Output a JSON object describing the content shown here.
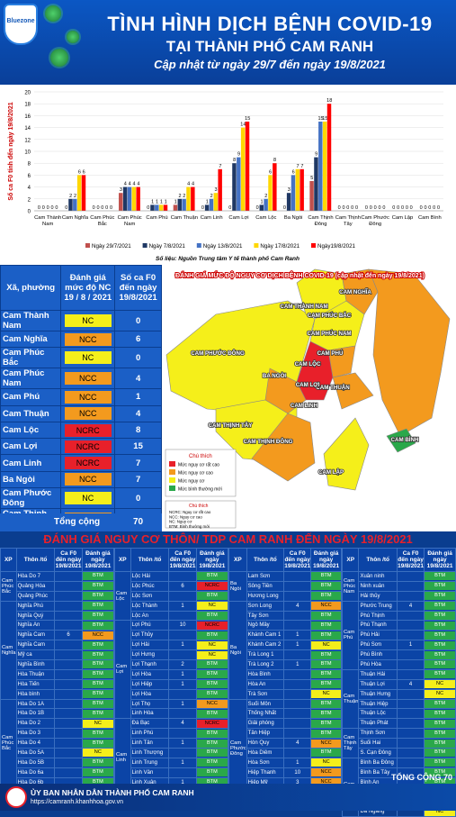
{
  "header": {
    "logo_text": "Bluezone",
    "title": "TÌNH HÌNH DỊCH BỆNH COVID-19",
    "subtitle": "TẠI THÀNH PHỐ CAM RANH",
    "update": "Cập nhật từ ngày 29/7 đến ngày 19/8/2021"
  },
  "chart_data": {
    "type": "bar",
    "ylabel": "Số ca F0 tính đến ngày 19/8/2021",
    "ylim": [
      0,
      20
    ],
    "categories": [
      "Cam Thành Nam",
      "Cam Nghĩa",
      "Cam Phúc Bắc",
      "Cam Phúc Nam",
      "Cam Phú",
      "Cam Thuận",
      "Cam Linh",
      "Cam Lợi",
      "Cam Lộc",
      "Ba Ngòi",
      "Cam Thịnh Đông",
      "Cam Thịnh Tây",
      "Cam Phước Đông",
      "Cam Lập",
      "Cam Bình"
    ],
    "series": [
      {
        "name": "Ngày 29/7/2021",
        "color": "#c0504d",
        "values": [
          0,
          0,
          0,
          3,
          0,
          1,
          0,
          0,
          0,
          0,
          5,
          0,
          0,
          0,
          0
        ]
      },
      {
        "name": "Ngày 7/8/2021",
        "color": "#1f3864",
        "values": [
          0,
          2,
          0,
          4,
          1,
          2,
          1,
          8,
          1,
          3,
          9,
          0,
          0,
          0,
          0
        ]
      },
      {
        "name": "Ngày 13/8/2021",
        "color": "#4472c4",
        "values": [
          0,
          2,
          0,
          4,
          1,
          2,
          2,
          9,
          2,
          6,
          15,
          0,
          0,
          0,
          0
        ]
      },
      {
        "name": "Ngày 17/8/2021",
        "color": "#ffd700",
        "values": [
          0,
          6,
          0,
          4,
          1,
          4,
          3,
          14,
          6,
          7,
          15,
          0,
          0,
          0,
          0
        ]
      },
      {
        "name": "Ngày19/8/2021",
        "color": "#ff0000",
        "values": [
          0,
          6,
          0,
          4,
          1,
          4,
          7,
          15,
          8,
          7,
          18,
          0,
          0,
          0,
          0
        ]
      }
    ],
    "source": "Số liệu: Nguồn Trung tâm Y tế thành phố Cam Ranh"
  },
  "risk_table": {
    "headers": [
      "Xã, phường",
      "Đánh giá mức độ NC 19 / 8 / 2021",
      "Số ca F0 đến ngày 19/8/2021"
    ],
    "rows": [
      [
        "Cam Thành Nam",
        "NC",
        "0"
      ],
      [
        "Cam Nghĩa",
        "NCC",
        "6"
      ],
      [
        "Cam Phúc Bắc",
        "NC",
        "0"
      ],
      [
        "Cam Phúc Nam",
        "NCC",
        "4"
      ],
      [
        "Cam Phú",
        "NCC",
        "1"
      ],
      [
        "Cam Thuận",
        "NCC",
        "4"
      ],
      [
        "Cam Lộc",
        "NCRC",
        "8"
      ],
      [
        "Cam Lợi",
        "NCRC",
        "15"
      ],
      [
        "Cam Linh",
        "NCRC",
        "7"
      ],
      [
        "Ba Ngòi",
        "NCC",
        "7"
      ],
      [
        "Cam Phước Đông",
        "NC",
        "0"
      ],
      [
        "Cam Thịnh Đông",
        "NCC",
        "18"
      ],
      [
        "Cam Thịnh Tây",
        "NC",
        "0"
      ],
      [
        "Cam Bình",
        "BTM",
        "0"
      ],
      [
        "Cam Lập",
        "NC",
        "0"
      ]
    ],
    "total_label": "Tổng cộng",
    "total": "70"
  },
  "map": {
    "title": "ĐÁNH GIÁ MỨC ĐỘ NGUY CƠ DỊCH BỆNH COVID-19 (cập nhật đến ngày 19/8/2021)",
    "labels": [
      "CAM NGHĨA",
      "CAM THÀNH NAM",
      "CAM PHÚC BẮC",
      "CAM PHÚC NAM",
      "CAM PHÚ",
      "CAM LỘC",
      "CAM THUẬN",
      "BA NGÒI",
      "CAM LỢI",
      "CAM LINH",
      "CAM PHƯỚC ĐÔNG",
      "CAM THỊNH TÂY",
      "CAM THỊNH ĐÔNG",
      "CAM LẬP",
      "CAM BÌNH"
    ],
    "legend_title": "Chú thích",
    "legend": [
      [
        "#e8202a",
        "Mức nguy cơ rất cao"
      ],
      [
        "#f39a1e",
        "Mức nguy cơ cao"
      ],
      [
        "#f5ef1a",
        "Mức nguy cơ"
      ],
      [
        "#2aa84a",
        "Mức bình thường mới"
      ]
    ],
    "legend2_title": "Chú thích",
    "legend2": [
      "NCRC: Nguy cơ rất cao",
      "NCC: Nguy cơ cao",
      "NC: Nguy cơ",
      "BTM: Bình thường mới"
    ]
  },
  "section_title": "ĐÁNH GIÁ NGUY CƠ THÔN/ TDP CAM RANH ĐẾN NGÀY 19/8/2021",
  "detail": {
    "headers": [
      "XP",
      "Thôn /tổ",
      "Ca F0 đến ngày 19/8/2021",
      "Đánh giá ngày 19/8/2021"
    ],
    "col1": [
      [
        "Hòa Do 7",
        "",
        "BTM"
      ],
      [
        "Quảng Hòa",
        "",
        "BTM"
      ],
      [
        "Quảng Phúc",
        "",
        "BTM"
      ],
      [
        "Nghĩa Phú",
        "",
        "BTM"
      ],
      [
        "Nghĩa Quý",
        "",
        "BTM"
      ],
      [
        "Nghĩa An",
        "",
        "BTM"
      ],
      [
        "Nghĩa Cam",
        "6",
        "NCC"
      ],
      [
        "Nghĩa Cam",
        "",
        "BTM"
      ],
      [
        "Mỹ ca",
        "",
        "BTM"
      ],
      [
        "Nghĩa Bình",
        "",
        "BTM"
      ],
      [
        "Hòa Thuận",
        "",
        "BTM"
      ],
      [
        "Hòa Tiến",
        "",
        "BTM"
      ],
      [
        "Hòa bình",
        "",
        "BTM"
      ],
      [
        "Hòa Do 1A",
        "",
        "BTM"
      ],
      [
        "Hòa Do 1B",
        "",
        "BTM"
      ],
      [
        "Hòa Do 2",
        "",
        "NC"
      ],
      [
        "Hòa Do 3",
        "",
        "BTM"
      ],
      [
        "Hòa Do 4",
        "",
        "BTM"
      ],
      [
        "Hòa Do 5A",
        "",
        "NC"
      ],
      [
        "Hòa Do 5B",
        "",
        "BTM"
      ],
      [
        "Hòa Do 6a",
        "",
        "BTM"
      ],
      [
        "Hòa Do 6b",
        "",
        "BTM"
      ]
    ],
    "col2": [
      [
        "Lộc Hải",
        "",
        "BTM"
      ],
      [
        "Lộc Phúc",
        "6",
        "NCRC"
      ],
      [
        "Lộc Sơn",
        "",
        "BTM"
      ],
      [
        "Lộc Thành",
        "1",
        "NC"
      ],
      [
        "Lộc An",
        "",
        "BTM"
      ],
      [
        "Lợi Phú",
        "10",
        "NCRC"
      ],
      [
        "Lợi Thủy",
        "",
        "BTM"
      ],
      [
        "Lợi Hải",
        "1",
        "NC"
      ],
      [
        "Lợi Hưng",
        "",
        "NC"
      ],
      [
        "Lợi Thạnh",
        "2",
        "BTM"
      ],
      [
        "Lợi Hòa",
        "1",
        "BTM"
      ],
      [
        "Lợi Hiệp",
        "1",
        "BTM"
      ],
      [
        "Lợi Hòa",
        "",
        "BTM"
      ],
      [
        "Lợi Thọ",
        "1",
        "NCC"
      ],
      [
        "Linh Hòa",
        "",
        "BTM"
      ],
      [
        "Đá Bạc",
        "4",
        "NCRC"
      ],
      [
        "Linh Phú",
        "",
        "BTM"
      ],
      [
        "Linh Tân",
        "1",
        "BTM"
      ],
      [
        "Linh Thượng",
        "",
        "BTM"
      ],
      [
        "Linh Trung",
        "1",
        "BTM"
      ],
      [
        "Linh Vân",
        "",
        "BTM"
      ],
      [
        "Linh Xuân",
        "1",
        "BTM"
      ],
      [
        "Xóm Cồn",
        "",
        "NC"
      ]
    ],
    "col3": [
      [
        "Lam Sơn",
        "",
        "BTM"
      ],
      [
        "Sông Tiền",
        "",
        "BTM"
      ],
      [
        "Hương Long",
        "",
        "BTM"
      ],
      [
        "Sơn Long",
        "4",
        "NCC"
      ],
      [
        "Tây Sơn",
        "",
        "BTM"
      ],
      [
        "Ngô Mây",
        "",
        "BTM"
      ],
      [
        "Khánh Cam 1",
        "1",
        "BTM"
      ],
      [
        "Khánh Cam 2",
        "1",
        "NC"
      ],
      [
        "Trà Long 1",
        "",
        "BTM"
      ],
      [
        "Trà Long 2",
        "1",
        "BTM"
      ],
      [
        "Hòa Bình",
        "",
        "BTM"
      ],
      [
        "Hòa An",
        "",
        "BTM"
      ],
      [
        "Trà Sơn",
        "",
        "NC"
      ],
      [
        "Suối Môn",
        "",
        "BTM"
      ],
      [
        "Thống Nhất",
        "",
        "BTM"
      ],
      [
        "Giải phóng",
        "",
        "BTM"
      ],
      [
        "Tân Hiệp",
        "",
        "BTM"
      ],
      [
        "Hòn Quy",
        "4",
        "NCC"
      ],
      [
        "Hòa Diêm",
        "",
        "BTM"
      ],
      [
        "Hòa Sơn",
        "1",
        "NC"
      ],
      [
        "Hiệp Thanh",
        "10",
        "NCC"
      ],
      [
        "Hiệp Mỹ",
        "3",
        "NCC"
      ],
      [
        "Mỹ Thanh",
        "",
        "BTM"
      ]
    ],
    "col4": [
      [
        "Xuân ninh",
        "",
        "BTM"
      ],
      [
        "Ninh xuân",
        "",
        "BTM"
      ],
      [
        "Hải thủy",
        "",
        "BTM"
      ],
      [
        "Phước Trung",
        "4",
        "BTM"
      ],
      [
        "Phú Thịnh",
        "",
        "BTM"
      ],
      [
        "Phú Thạnh",
        "",
        "BTM"
      ],
      [
        "Phú Hải",
        "",
        "BTM"
      ],
      [
        "Phú Sơn",
        "1",
        "BTM"
      ],
      [
        "Phú Bình",
        "",
        "BTM"
      ],
      [
        "Phú Hòa",
        "",
        "BTM"
      ],
      [
        "Thuận Hải",
        "",
        "BTM"
      ],
      [
        "Thuận Lợi",
        "4",
        "NC"
      ],
      [
        "Thuận Hưng",
        "",
        "NC"
      ],
      [
        "Thuận Hiệp",
        "",
        "BTM"
      ],
      [
        "Thuận Lộc",
        "",
        "BTM"
      ],
      [
        "Thuận Phát",
        "",
        "BTM"
      ],
      [
        "Thịnh Sơn",
        "",
        "BTM"
      ],
      [
        "Suối Hai",
        "",
        "BTM"
      ],
      [
        "S. Cạn Đông",
        "",
        "BTM"
      ],
      [
        "Bình Ba Đông",
        "",
        "BTM"
      ],
      [
        "Bình Ba Tây",
        "",
        "BTM"
      ],
      [
        "Bình An",
        "",
        "BTM"
      ],
      [
        "Bình Hưng",
        "",
        "BTM"
      ],
      [
        "Nước Ngọt",
        "",
        "BTM"
      ],
      [
        "Đá Ngang",
        "",
        "NC"
      ]
    ],
    "total_label": "TỔNG CỘNG",
    "total": "70",
    "group_labels": [
      "Cam Thành Nam",
      "Cam Nghĩa",
      "Cam Phúc Bắc",
      "Cam Lộc",
      "Cam Lợi",
      "Cam Linh",
      "Ba Ngòi",
      "Cam Phước Đông",
      "Cam Phúc Nam",
      "Cam Phú",
      "Cam Thuận",
      "Cam Thịnh Tây",
      "Cam Bình",
      "Cam Lập"
    ]
  },
  "footer": {
    "org": "ỦY BAN NHÂN DÂN THÀNH PHỐ CAM RANH",
    "url": "https://camranh.khanhhoa.gov.vn"
  }
}
